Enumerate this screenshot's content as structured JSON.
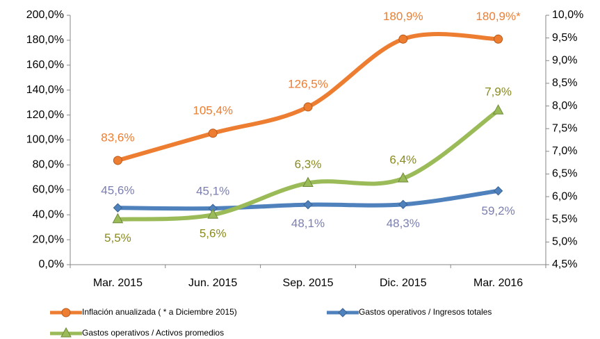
{
  "chart_data": {
    "type": "line",
    "categories": [
      "Mar. 2015",
      "Jun. 2015",
      "Sep. 2015",
      "Dic. 2015",
      "Mar. 2016"
    ],
    "ylim": [
      0,
      200
    ],
    "yticks": [
      {
        "value": 0,
        "label": "0,0%"
      },
      {
        "value": 20,
        "label": "20,0%"
      },
      {
        "value": 40,
        "label": "40,0%"
      },
      {
        "value": 60,
        "label": "60,0%"
      },
      {
        "value": 80,
        "label": "80,0%"
      },
      {
        "value": 100,
        "label": "100,0%"
      },
      {
        "value": 120,
        "label": "120,0%"
      },
      {
        "value": 140,
        "label": "140,0%"
      },
      {
        "value": 160,
        "label": "160,0%"
      },
      {
        "value": 180,
        "label": "180,0%"
      },
      {
        "value": 200,
        "label": "200,0%"
      }
    ],
    "y2lim": [
      4.5,
      10.0
    ],
    "y2ticks": [
      {
        "value": 4.5,
        "label": "4,5%"
      },
      {
        "value": 5.0,
        "label": "5,0%"
      },
      {
        "value": 5.5,
        "label": "5,5%"
      },
      {
        "value": 6.0,
        "label": "6,0%"
      },
      {
        "value": 6.5,
        "label": "6,5%"
      },
      {
        "value": 7.0,
        "label": "7,0%"
      },
      {
        "value": 7.5,
        "label": "7,5%"
      },
      {
        "value": 8.0,
        "label": "8,0%"
      },
      {
        "value": 8.5,
        "label": "8,5%"
      },
      {
        "value": 9.0,
        "label": "9,0%"
      },
      {
        "value": 9.5,
        "label": "9,5%"
      },
      {
        "value": 10.0,
        "label": "10,0%"
      }
    ],
    "smooth": true,
    "series": [
      {
        "name": "Inflación anualizada ( * a Diciembre 2015)",
        "color": "#ED7D31",
        "label_color": "#ED7D31",
        "marker": "circle",
        "values": [
          83.6,
          105.4,
          126.5,
          180.9,
          180.9
        ],
        "value_labels": [
          "83,6%",
          "105,4%",
          "126,5%",
          "180,9%",
          "180,9%*"
        ]
      },
      {
        "name": "Gastos operativos / Ingresos totales",
        "color": "#4F81BD",
        "label_color": "#7B7FB0",
        "marker": "diamond",
        "values": [
          45.6,
          45.1,
          48.1,
          48.3,
          59.2
        ],
        "value_labels": [
          "45,6%",
          "45,1%",
          "48,1%",
          "48,3%",
          "59,2%"
        ]
      },
      {
        "name": "Gastos operativos / Activos promedios",
        "color": "#9BBB59",
        "label_color": "#8A8A1E",
        "marker": "triangle",
        "axis": "y2",
        "values": [
          5.5,
          5.6,
          6.3,
          6.4,
          7.9
        ],
        "value_labels": [
          "5,5%",
          "5,6%",
          "6,3%",
          "6,4%",
          "7,9%"
        ]
      }
    ]
  }
}
